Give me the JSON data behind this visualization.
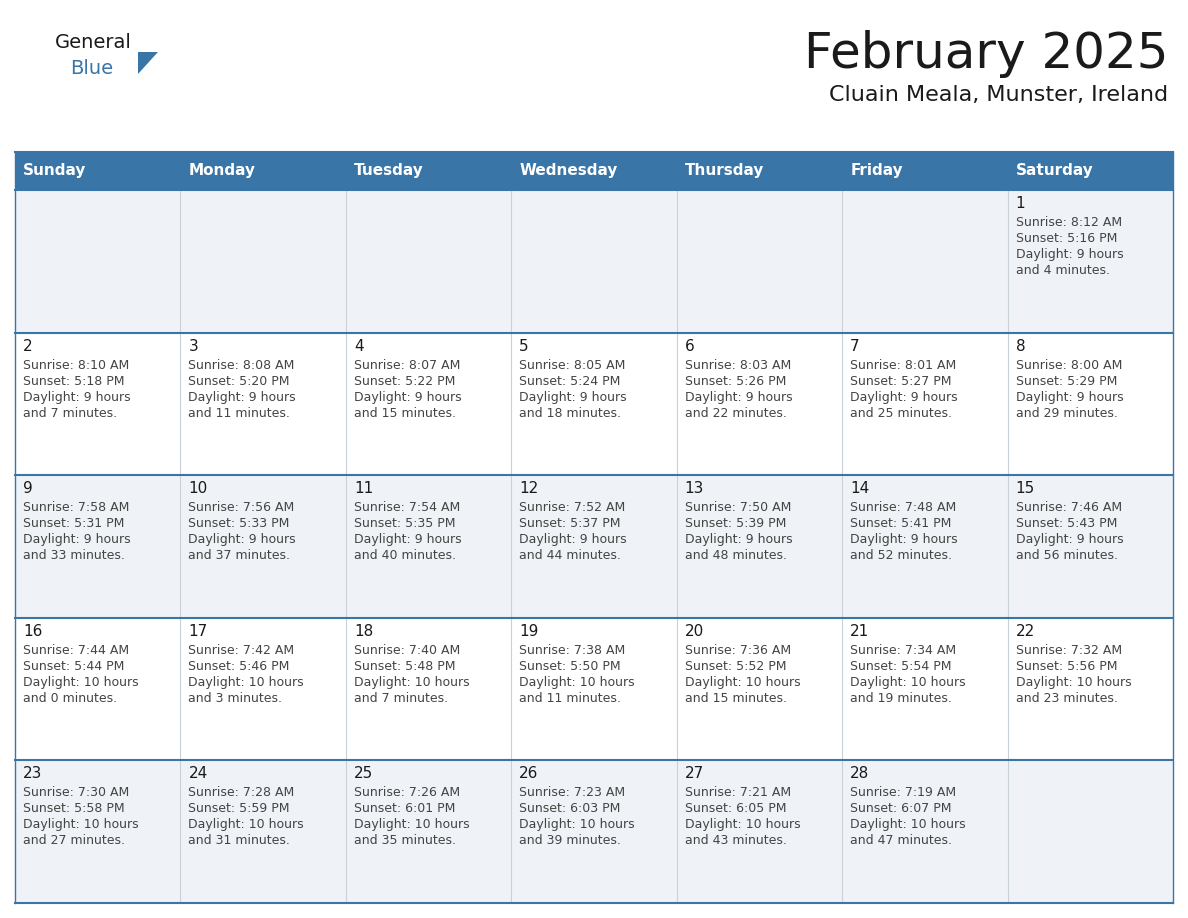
{
  "title": "February 2025",
  "subtitle": "Cluain Meala, Munster, Ireland",
  "header_bg": "#3a75a8",
  "header_text": "#ffffff",
  "row_bg_colors": [
    "#eff3f7",
    "#ffffff",
    "#eff3f7",
    "#ffffff",
    "#eff3f7"
  ],
  "border_color": "#3a75a8",
  "grid_line_color": "#c8d0d8",
  "day_headers": [
    "Sunday",
    "Monday",
    "Tuesday",
    "Wednesday",
    "Thursday",
    "Friday",
    "Saturday"
  ],
  "days": [
    {
      "day": 1,
      "col": 6,
      "row": 0,
      "sunrise": "8:12 AM",
      "sunset": "5:16 PM",
      "daylight_hours": 9,
      "daylight_minutes": 4
    },
    {
      "day": 2,
      "col": 0,
      "row": 1,
      "sunrise": "8:10 AM",
      "sunset": "5:18 PM",
      "daylight_hours": 9,
      "daylight_minutes": 7
    },
    {
      "day": 3,
      "col": 1,
      "row": 1,
      "sunrise": "8:08 AM",
      "sunset": "5:20 PM",
      "daylight_hours": 9,
      "daylight_minutes": 11
    },
    {
      "day": 4,
      "col": 2,
      "row": 1,
      "sunrise": "8:07 AM",
      "sunset": "5:22 PM",
      "daylight_hours": 9,
      "daylight_minutes": 15
    },
    {
      "day": 5,
      "col": 3,
      "row": 1,
      "sunrise": "8:05 AM",
      "sunset": "5:24 PM",
      "daylight_hours": 9,
      "daylight_minutes": 18
    },
    {
      "day": 6,
      "col": 4,
      "row": 1,
      "sunrise": "8:03 AM",
      "sunset": "5:26 PM",
      "daylight_hours": 9,
      "daylight_minutes": 22
    },
    {
      "day": 7,
      "col": 5,
      "row": 1,
      "sunrise": "8:01 AM",
      "sunset": "5:27 PM",
      "daylight_hours": 9,
      "daylight_minutes": 25
    },
    {
      "day": 8,
      "col": 6,
      "row": 1,
      "sunrise": "8:00 AM",
      "sunset": "5:29 PM",
      "daylight_hours": 9,
      "daylight_minutes": 29
    },
    {
      "day": 9,
      "col": 0,
      "row": 2,
      "sunrise": "7:58 AM",
      "sunset": "5:31 PM",
      "daylight_hours": 9,
      "daylight_minutes": 33
    },
    {
      "day": 10,
      "col": 1,
      "row": 2,
      "sunrise": "7:56 AM",
      "sunset": "5:33 PM",
      "daylight_hours": 9,
      "daylight_minutes": 37
    },
    {
      "day": 11,
      "col": 2,
      "row": 2,
      "sunrise": "7:54 AM",
      "sunset": "5:35 PM",
      "daylight_hours": 9,
      "daylight_minutes": 40
    },
    {
      "day": 12,
      "col": 3,
      "row": 2,
      "sunrise": "7:52 AM",
      "sunset": "5:37 PM",
      "daylight_hours": 9,
      "daylight_minutes": 44
    },
    {
      "day": 13,
      "col": 4,
      "row": 2,
      "sunrise": "7:50 AM",
      "sunset": "5:39 PM",
      "daylight_hours": 9,
      "daylight_minutes": 48
    },
    {
      "day": 14,
      "col": 5,
      "row": 2,
      "sunrise": "7:48 AM",
      "sunset": "5:41 PM",
      "daylight_hours": 9,
      "daylight_minutes": 52
    },
    {
      "day": 15,
      "col": 6,
      "row": 2,
      "sunrise": "7:46 AM",
      "sunset": "5:43 PM",
      "daylight_hours": 9,
      "daylight_minutes": 56
    },
    {
      "day": 16,
      "col": 0,
      "row": 3,
      "sunrise": "7:44 AM",
      "sunset": "5:44 PM",
      "daylight_hours": 10,
      "daylight_minutes": 0
    },
    {
      "day": 17,
      "col": 1,
      "row": 3,
      "sunrise": "7:42 AM",
      "sunset": "5:46 PM",
      "daylight_hours": 10,
      "daylight_minutes": 3
    },
    {
      "day": 18,
      "col": 2,
      "row": 3,
      "sunrise": "7:40 AM",
      "sunset": "5:48 PM",
      "daylight_hours": 10,
      "daylight_minutes": 7
    },
    {
      "day": 19,
      "col": 3,
      "row": 3,
      "sunrise": "7:38 AM",
      "sunset": "5:50 PM",
      "daylight_hours": 10,
      "daylight_minutes": 11
    },
    {
      "day": 20,
      "col": 4,
      "row": 3,
      "sunrise": "7:36 AM",
      "sunset": "5:52 PM",
      "daylight_hours": 10,
      "daylight_minutes": 15
    },
    {
      "day": 21,
      "col": 5,
      "row": 3,
      "sunrise": "7:34 AM",
      "sunset": "5:54 PM",
      "daylight_hours": 10,
      "daylight_minutes": 19
    },
    {
      "day": 22,
      "col": 6,
      "row": 3,
      "sunrise": "7:32 AM",
      "sunset": "5:56 PM",
      "daylight_hours": 10,
      "daylight_minutes": 23
    },
    {
      "day": 23,
      "col": 0,
      "row": 4,
      "sunrise": "7:30 AM",
      "sunset": "5:58 PM",
      "daylight_hours": 10,
      "daylight_minutes": 27
    },
    {
      "day": 24,
      "col": 1,
      "row": 4,
      "sunrise": "7:28 AM",
      "sunset": "5:59 PM",
      "daylight_hours": 10,
      "daylight_minutes": 31
    },
    {
      "day": 25,
      "col": 2,
      "row": 4,
      "sunrise": "7:26 AM",
      "sunset": "6:01 PM",
      "daylight_hours": 10,
      "daylight_minutes": 35
    },
    {
      "day": 26,
      "col": 3,
      "row": 4,
      "sunrise": "7:23 AM",
      "sunset": "6:03 PM",
      "daylight_hours": 10,
      "daylight_minutes": 39
    },
    {
      "day": 27,
      "col": 4,
      "row": 4,
      "sunrise": "7:21 AM",
      "sunset": "6:05 PM",
      "daylight_hours": 10,
      "daylight_minutes": 43
    },
    {
      "day": 28,
      "col": 5,
      "row": 4,
      "sunrise": "7:19 AM",
      "sunset": "6:07 PM",
      "daylight_hours": 10,
      "daylight_minutes": 47
    }
  ],
  "num_rows": 5,
  "num_cols": 7,
  "logo_text_general": "General",
  "logo_text_blue": "Blue",
  "logo_color_general": "#1a1a1a",
  "logo_color_blue": "#3a75a8",
  "logo_triangle_color": "#3a75a8",
  "title_fontsize": 36,
  "subtitle_fontsize": 16,
  "day_header_fontsize": 11,
  "day_num_fontsize": 11,
  "cell_text_fontsize": 9
}
